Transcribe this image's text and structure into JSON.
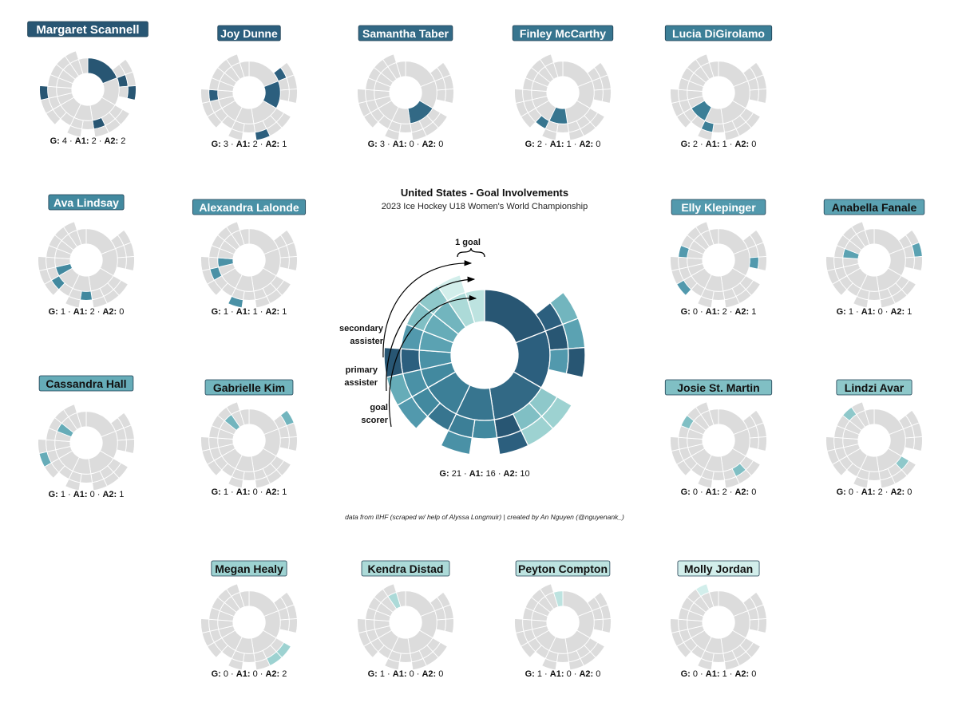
{
  "chart_data": {
    "type": "sunburst",
    "title": "United States - Goal Involvements",
    "subtitle": "2023 Ice Hockey U18 Women's World Championship",
    "caption": "data from IIHF (scraped w/ help of Alyssa Longmuir) | created by An Nguyen (@nguyenank_)",
    "annotations": {
      "one_goal": "1 goal",
      "secondary_assister": [
        "secondary",
        "assister"
      ],
      "primary_assister": [
        "primary",
        "assister"
      ],
      "goal_scorer": [
        "goal",
        "scorer"
      ]
    },
    "stat_labels": {
      "g": "G:",
      "a1": "A1:",
      "a2": "A2:",
      "sep": " · "
    },
    "team_totals": {
      "G": 21,
      "A1": 16,
      "A2": 10
    },
    "players": [
      {
        "name": "Margaret Scannell",
        "G": 4,
        "A1": 2,
        "A2": 2,
        "color": "#285673"
      },
      {
        "name": "Joy Dunne",
        "G": 3,
        "A1": 2,
        "A2": 1,
        "color": "#2c5f7e"
      },
      {
        "name": "Samantha Taber",
        "G": 3,
        "A1": 0,
        "A2": 0,
        "color": "#326985"
      },
      {
        "name": "Finley McCarthy",
        "G": 2,
        "A1": 1,
        "A2": 0,
        "color": "#37758f"
      },
      {
        "name": "Lucia DiGirolamo",
        "G": 2,
        "A1": 1,
        "A2": 0,
        "color": "#3c7f97"
      },
      {
        "name": "Ava Lindsay",
        "G": 1,
        "A1": 2,
        "A2": 0,
        "color": "#42899f"
      },
      {
        "name": "Alexandra Lalonde",
        "G": 1,
        "A1": 1,
        "A2": 1,
        "color": "#4a91a6"
      },
      {
        "name": "Elly Klepinger",
        "G": 0,
        "A1": 2,
        "A2": 1,
        "color": "#5299ad"
      },
      {
        "name": "Anabella Fanale",
        "G": 1,
        "A1": 0,
        "A2": 1,
        "color": "#5ba2b2"
      },
      {
        "name": "Cassandra Hall",
        "G": 1,
        "A1": 0,
        "A2": 1,
        "color": "#66acb8"
      },
      {
        "name": "Gabrielle Kim",
        "G": 1,
        "A1": 0,
        "A2": 1,
        "color": "#72b5be"
      },
      {
        "name": "Josie St. Martin",
        "G": 0,
        "A1": 2,
        "A2": 0,
        "color": "#80bfc4"
      },
      {
        "name": "Lindzi Avar",
        "G": 0,
        "A1": 2,
        "A2": 0,
        "color": "#8ec8ca"
      },
      {
        "name": "Megan Healy",
        "G": 0,
        "A1": 0,
        "A2": 2,
        "color": "#9dd2d1"
      },
      {
        "name": "Kendra Distad",
        "G": 1,
        "A1": 0,
        "A2": 0,
        "color": "#acdad8"
      },
      {
        "name": "Peyton Compton",
        "G": 1,
        "A1": 0,
        "A2": 0,
        "color": "#bde3e0"
      },
      {
        "name": "Molly Jordan",
        "G": 0,
        "A1": 1,
        "A2": 0,
        "color": "#d2eeeb"
      }
    ],
    "goals": [
      {
        "scorer": "Margaret Scannell",
        "a1": null,
        "a2": null
      },
      {
        "scorer": "Margaret Scannell",
        "a1": null,
        "a2": null
      },
      {
        "scorer": "Margaret Scannell",
        "a1": null,
        "a2": null
      },
      {
        "scorer": "Margaret Scannell",
        "a1": "Joy Dunne",
        "a2": "Gabrielle Kim"
      },
      {
        "scorer": "Joy Dunne",
        "a1": "Margaret Scannell",
        "a2": "Anabella Fanale"
      },
      {
        "scorer": "Joy Dunne",
        "a1": "Elly Klepinger",
        "a2": "Margaret Scannell"
      },
      {
        "scorer": "Joy Dunne",
        "a1": null,
        "a2": null
      },
      {
        "scorer": "Samantha Taber",
        "a1": "Lindzi Avar",
        "a2": "Megan Healy"
      },
      {
        "scorer": "Samantha Taber",
        "a1": "Josie St. Martin",
        "a2": "Megan Healy"
      },
      {
        "scorer": "Samantha Taber",
        "a1": "Margaret Scannell",
        "a2": "Joy Dunne"
      },
      {
        "scorer": "Finley McCarthy",
        "a1": "Ava Lindsay",
        "a2": null
      },
      {
        "scorer": "Finley McCarthy",
        "a1": "Lucia DiGirolamo",
        "a2": "Alexandra Lalonde"
      },
      {
        "scorer": "Lucia DiGirolamo",
        "a1": "Finley McCarthy",
        "a2": null
      },
      {
        "scorer": "Lucia DiGirolamo",
        "a1": "Ava Lindsay",
        "a2": "Elly Klepinger"
      },
      {
        "scorer": "Ava Lindsay",
        "a1": "Alexandra Lalonde",
        "a2": "Cassandra Hall"
      },
      {
        "scorer": "Alexandra Lalonde",
        "a1": "Joy Dunne",
        "a2": "Margaret Scannell"
      },
      {
        "scorer": "Anabella Fanale",
        "a1": "Elly Klepinger",
        "a2": null
      },
      {
        "scorer": "Cassandra Hall",
        "a1": "Josie St. Martin",
        "a2": null
      },
      {
        "scorer": "Gabrielle Kim",
        "a1": "Lindzi Avar",
        "a2": null
      },
      {
        "scorer": "Kendra Distad",
        "a1": "Molly Jordan",
        "a2": null
      },
      {
        "scorer": "Peyton Compton",
        "a1": null,
        "a2": null
      }
    ],
    "highlight_inactive_color": "#dcdcdc"
  }
}
